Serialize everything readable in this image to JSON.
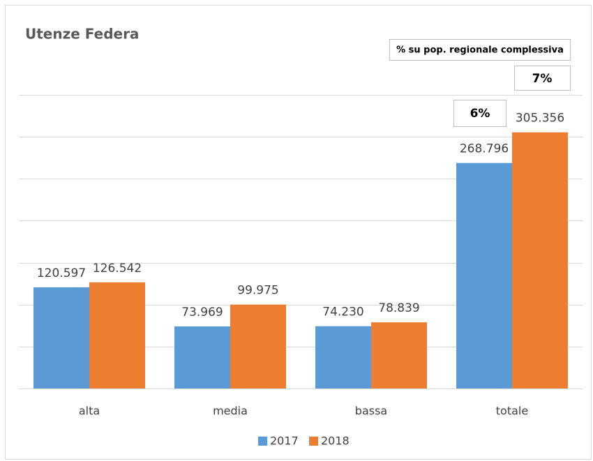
{
  "chart_data": {
    "type": "bar",
    "title": "Utenze Federa",
    "categories": [
      "alta",
      "media",
      "bassa",
      "totale"
    ],
    "series": [
      {
        "name": "2017",
        "color": "#5b9bd5",
        "values": [
          120597,
          73969,
          74230,
          268796
        ],
        "value_labels": [
          "120.597",
          "73.969",
          "74.230",
          "268.796"
        ]
      },
      {
        "name": "2018",
        "color": "#ed7d31",
        "values": [
          126542,
          99975,
          78839,
          305356
        ],
        "value_labels": [
          "126.542",
          "99.975",
          "78.839",
          "305.356"
        ]
      }
    ],
    "ylim": [
      0,
      350000
    ],
    "yticks": [
      0,
      50000,
      100000,
      150000,
      200000,
      250000,
      300000,
      350000
    ],
    "grid": true,
    "annotations": [
      "% su pop. regionale complessiva",
      "6%",
      "7%"
    ],
    "legend": "bottom"
  }
}
